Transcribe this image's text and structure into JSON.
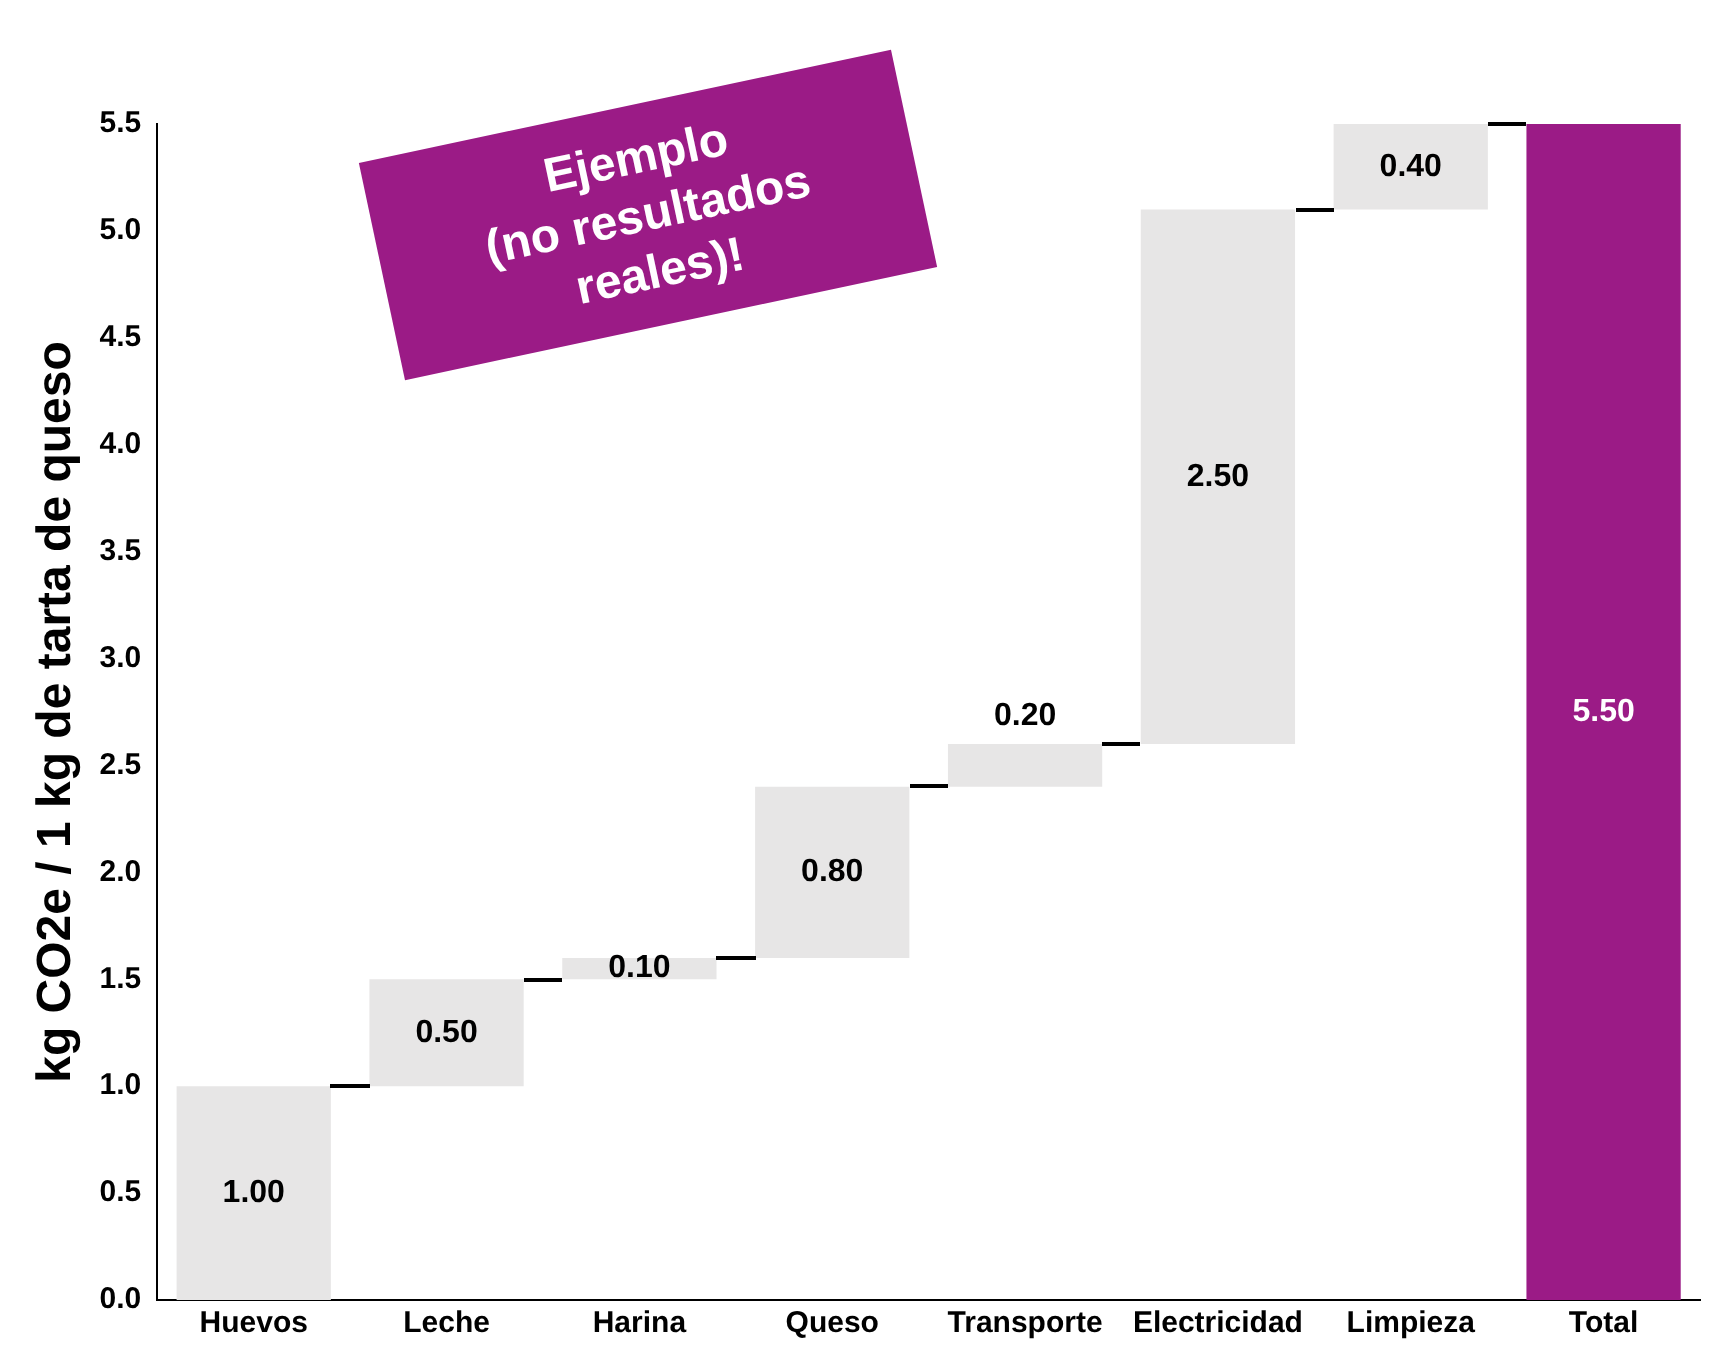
{
  "chart_data": {
    "type": "bar",
    "ylabel": "kg CO2e / 1 kg de tarta de queso",
    "categories": [
      "Huevos",
      "Leche",
      "Harina",
      "Queso",
      "Transporte",
      "Electricidad",
      "Limpieza",
      "Total"
    ],
    "values": [
      1.0,
      0.5,
      0.1,
      0.8,
      0.2,
      2.5,
      0.4,
      5.5
    ],
    "base": [
      0,
      1.0,
      1.5,
      1.6,
      2.4,
      2.6,
      5.1,
      0
    ],
    "colors": [
      "#e7e6e6",
      "#e7e6e6",
      "#e7e6e6",
      "#e7e6e6",
      "#e7e6e6",
      "#e7e6e6",
      "#e7e6e6",
      "#9b1b86"
    ],
    "value_labels": [
      "1.00",
      "0.50",
      "0.10",
      "0.80",
      "0.20",
      "2.50",
      "0.40",
      "5.50"
    ],
    "ylim": [
      0,
      5.5
    ],
    "yticks": [
      {
        "value": 0,
        "label": "0.0"
      },
      {
        "value": 0.5,
        "label": "0.5"
      },
      {
        "value": 1,
        "label": "1.0"
      },
      {
        "value": 1.5,
        "label": "1.5"
      },
      {
        "value": 2,
        "label": "2.0"
      },
      {
        "value": 2.5,
        "label": "2.5"
      },
      {
        "value": 3,
        "label": "3.0"
      },
      {
        "value": 3.5,
        "label": "3.5"
      },
      {
        "value": 4,
        "label": "4.0"
      },
      {
        "value": 4.5,
        "label": "4.5"
      },
      {
        "value": 5,
        "label": "5.0"
      },
      {
        "value": 5.5,
        "label": "5.5"
      }
    ],
    "grid": false,
    "legend": false,
    "annotations": [
      "Ejemplo\n(no resultados\nreales)!"
    ]
  }
}
